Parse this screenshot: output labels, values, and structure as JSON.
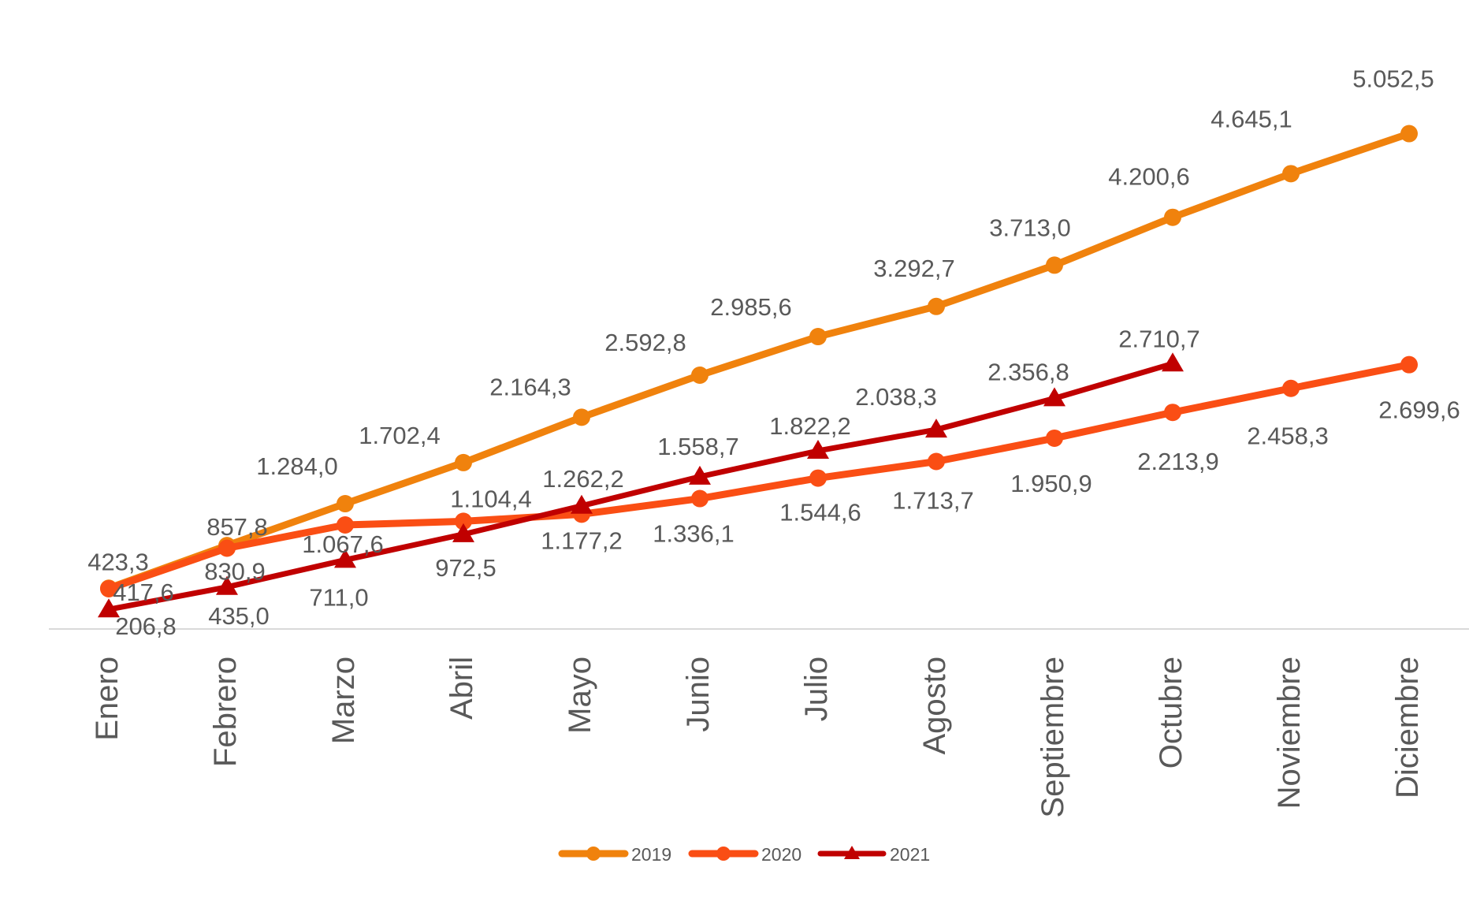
{
  "chart_data": {
    "type": "line",
    "title": "",
    "xlabel": "",
    "ylabel": "",
    "grid": false,
    "y_axis_visible": false,
    "value_axis_range": [
      0,
      6000
    ],
    "legend_position": "bottom",
    "categories": [
      "Enero",
      "Febrero",
      "Marzo",
      "Abril",
      "Mayo",
      "Junio",
      "Julio",
      "Agosto",
      "Septiembre",
      "Octubre",
      "Noviembre",
      "Diciembre"
    ],
    "series": [
      {
        "name": "2019",
        "color": "#F0820D",
        "marker": "circle",
        "values": [
          423.3,
          857.8,
          1284.0,
          1702.4,
          2164.3,
          2592.8,
          2985.6,
          3292.7,
          3713.0,
          4200.6,
          4645.1,
          5052.5
        ],
        "labels": [
          "423,3",
          "857,8",
          "1.284,0",
          "1.702,4",
          "2.164,3",
          "2.592,8",
          "2.985,6",
          "3.292,7",
          "3.713,0",
          "4.200,6",
          "4.645,1",
          "5.052,5"
        ]
      },
      {
        "name": "2020",
        "color": "#FA4E14",
        "marker": "circle",
        "values": [
          417.6,
          830.9,
          1067.6,
          1104.4,
          1177.2,
          1336.1,
          1544.6,
          1713.7,
          1950.9,
          2213.9,
          2458.3,
          2699.6
        ],
        "labels": [
          "417,6",
          "830,9",
          "1.067,6",
          "1.104,4",
          "1.177,2",
          "1.336,1",
          "1.544,6",
          "1.713,7",
          "1.950,9",
          "2.213,9",
          "2.458,3",
          "2.699,6"
        ]
      },
      {
        "name": "2021",
        "color": "#C00000",
        "marker": "triangle",
        "values": [
          206.8,
          435.0,
          711.0,
          972.5,
          1262.2,
          1558.7,
          1822.2,
          2038.3,
          2356.8,
          2710.7
        ],
        "labels": [
          "206,8",
          "435,0",
          "711,0",
          "972,5",
          "1.262,2",
          "1.558,7",
          "1.822,2",
          "2.038,3",
          "2.356,8",
          "2.710,7"
        ]
      }
    ],
    "colors": {
      "label_text": "#595959",
      "axis_line": "#D9D9D9",
      "background": "#FFFFFF"
    }
  }
}
